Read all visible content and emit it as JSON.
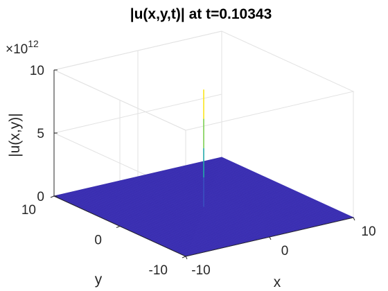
{
  "chart_data": {
    "type": "surface",
    "title": "|u(x,y,t)| at t=0.10343",
    "xlabel": "x",
    "ylabel": "y",
    "zlabel": "|u(x,y)|",
    "z_exponent_label": "×10",
    "z_exponent_power": "12",
    "xlim": [
      -10,
      10
    ],
    "ylim": [
      -10,
      10
    ],
    "zlim": [
      0,
      10
    ],
    "z_scale": "×1e12",
    "x_ticks": [
      "-10",
      "0",
      "10"
    ],
    "y_ticks": [
      "-10",
      "0",
      "10"
    ],
    "z_ticks": [
      "0",
      "5",
      "10"
    ],
    "grid": true,
    "surface": {
      "baseline_value": 0,
      "peak": {
        "x": 0,
        "y": 0,
        "value": 9.3
      },
      "mesh_color": "#3b2fb4",
      "peak_colors": [
        "#fae51c",
        "#7ccf50",
        "#22a9a8",
        "#3a50c0"
      ]
    }
  }
}
